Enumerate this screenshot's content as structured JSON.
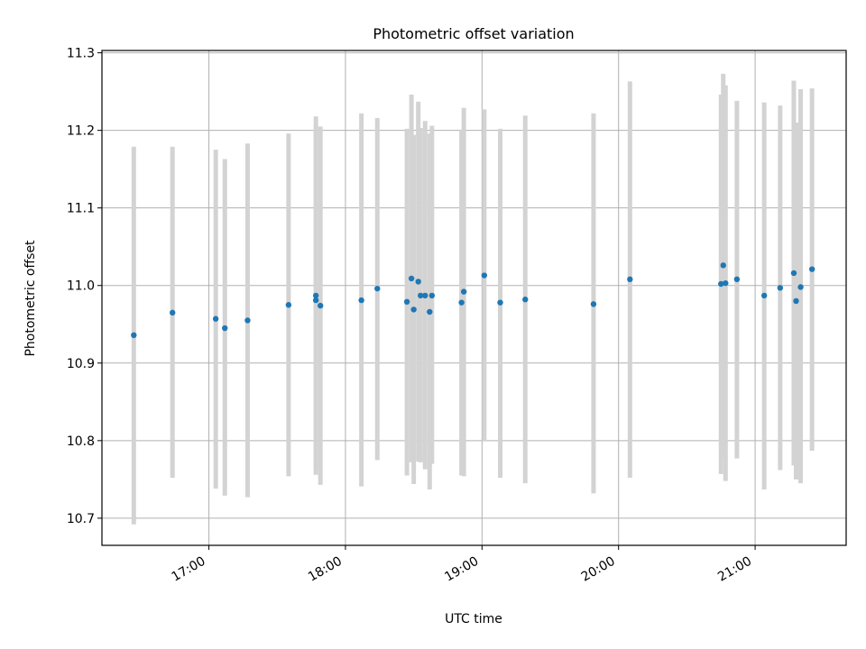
{
  "chart_data": {
    "type": "scatter",
    "title": "Photometric offset variation",
    "xlabel": "UTC time",
    "ylabel": "Photometric offset",
    "x_ticks": [
      "17:00",
      "18:00",
      "19:00",
      "20:00",
      "21:00"
    ],
    "y_ticks": [
      "10.7",
      "10.8",
      "10.9",
      "11.0",
      "11.1",
      "11.2",
      "11.3"
    ],
    "xlim": [
      "16:13",
      "21:40"
    ],
    "ylim": [
      10.665,
      11.303
    ],
    "grid": true,
    "colors": {
      "points": "#1f77b4",
      "errorbars": "#d3d3d3",
      "grid": "#b0b0b0"
    },
    "points": [
      {
        "x": "16:27",
        "y": 10.936,
        "ylow": 10.692,
        "yhigh": 11.179
      },
      {
        "x": "16:44",
        "y": 10.965,
        "ylow": 10.752,
        "yhigh": 11.179
      },
      {
        "x": "17:03",
        "y": 10.957,
        "ylow": 10.738,
        "yhigh": 11.175
      },
      {
        "x": "17:07",
        "y": 10.945,
        "ylow": 10.729,
        "yhigh": 11.163
      },
      {
        "x": "17:17",
        "y": 10.955,
        "ylow": 10.727,
        "yhigh": 11.183
      },
      {
        "x": "17:35",
        "y": 10.975,
        "ylow": 10.754,
        "yhigh": 11.196
      },
      {
        "x": "17:47",
        "y": 10.987,
        "ylow": 10.756,
        "yhigh": 11.218
      },
      {
        "x": "17:47",
        "y": 10.981,
        "ylow": 10.762,
        "yhigh": 11.201
      },
      {
        "x": "17:49",
        "y": 10.974,
        "ylow": 10.743,
        "yhigh": 11.205
      },
      {
        "x": "18:07",
        "y": 10.981,
        "ylow": 10.741,
        "yhigh": 11.222
      },
      {
        "x": "18:14",
        "y": 10.996,
        "ylow": 10.775,
        "yhigh": 11.216
      },
      {
        "x": "18:27",
        "y": 10.979,
        "ylow": 10.755,
        "yhigh": 11.202
      },
      {
        "x": "18:29",
        "y": 11.009,
        "ylow": 10.772,
        "yhigh": 11.246
      },
      {
        "x": "18:30",
        "y": 10.969,
        "ylow": 10.744,
        "yhigh": 11.194
      },
      {
        "x": "18:32",
        "y": 11.005,
        "ylow": 10.773,
        "yhigh": 11.237
      },
      {
        "x": "18:33",
        "y": 10.987,
        "ylow": 10.772,
        "yhigh": 11.203
      },
      {
        "x": "18:35",
        "y": 10.987,
        "ylow": 10.763,
        "yhigh": 11.212
      },
      {
        "x": "18:37",
        "y": 10.966,
        "ylow": 10.737,
        "yhigh": 11.196
      },
      {
        "x": "18:38",
        "y": 10.987,
        "ylow": 10.77,
        "yhigh": 11.206
      },
      {
        "x": "18:51",
        "y": 10.978,
        "ylow": 10.755,
        "yhigh": 11.201
      },
      {
        "x": "18:52",
        "y": 10.992,
        "ylow": 10.754,
        "yhigh": 11.229
      },
      {
        "x": "19:01",
        "y": 11.013,
        "ylow": 10.799,
        "yhigh": 11.227
      },
      {
        "x": "19:08",
        "y": 10.978,
        "ylow": 10.752,
        "yhigh": 11.202
      },
      {
        "x": "19:19",
        "y": 10.982,
        "ylow": 10.745,
        "yhigh": 11.219
      },
      {
        "x": "19:49",
        "y": 10.976,
        "ylow": 10.732,
        "yhigh": 11.222
      },
      {
        "x": "20:05",
        "y": 11.008,
        "ylow": 10.752,
        "yhigh": 11.263
      },
      {
        "x": "20:45",
        "y": 11.002,
        "ylow": 10.757,
        "yhigh": 11.246
      },
      {
        "x": "20:46",
        "y": 11.026,
        "ylow": 10.778,
        "yhigh": 11.273
      },
      {
        "x": "20:47",
        "y": 11.003,
        "ylow": 10.748,
        "yhigh": 11.258
      },
      {
        "x": "20:52",
        "y": 11.008,
        "ylow": 10.777,
        "yhigh": 11.238
      },
      {
        "x": "21:04",
        "y": 10.987,
        "ylow": 10.737,
        "yhigh": 11.236
      },
      {
        "x": "21:11",
        "y": 10.997,
        "ylow": 10.762,
        "yhigh": 11.232
      },
      {
        "x": "21:17",
        "y": 11.016,
        "ylow": 10.768,
        "yhigh": 11.264
      },
      {
        "x": "21:18",
        "y": 10.98,
        "ylow": 10.75,
        "yhigh": 11.21
      },
      {
        "x": "21:20",
        "y": 10.998,
        "ylow": 10.745,
        "yhigh": 11.253
      },
      {
        "x": "21:25",
        "y": 11.021,
        "ylow": 10.787,
        "yhigh": 11.254
      }
    ]
  }
}
